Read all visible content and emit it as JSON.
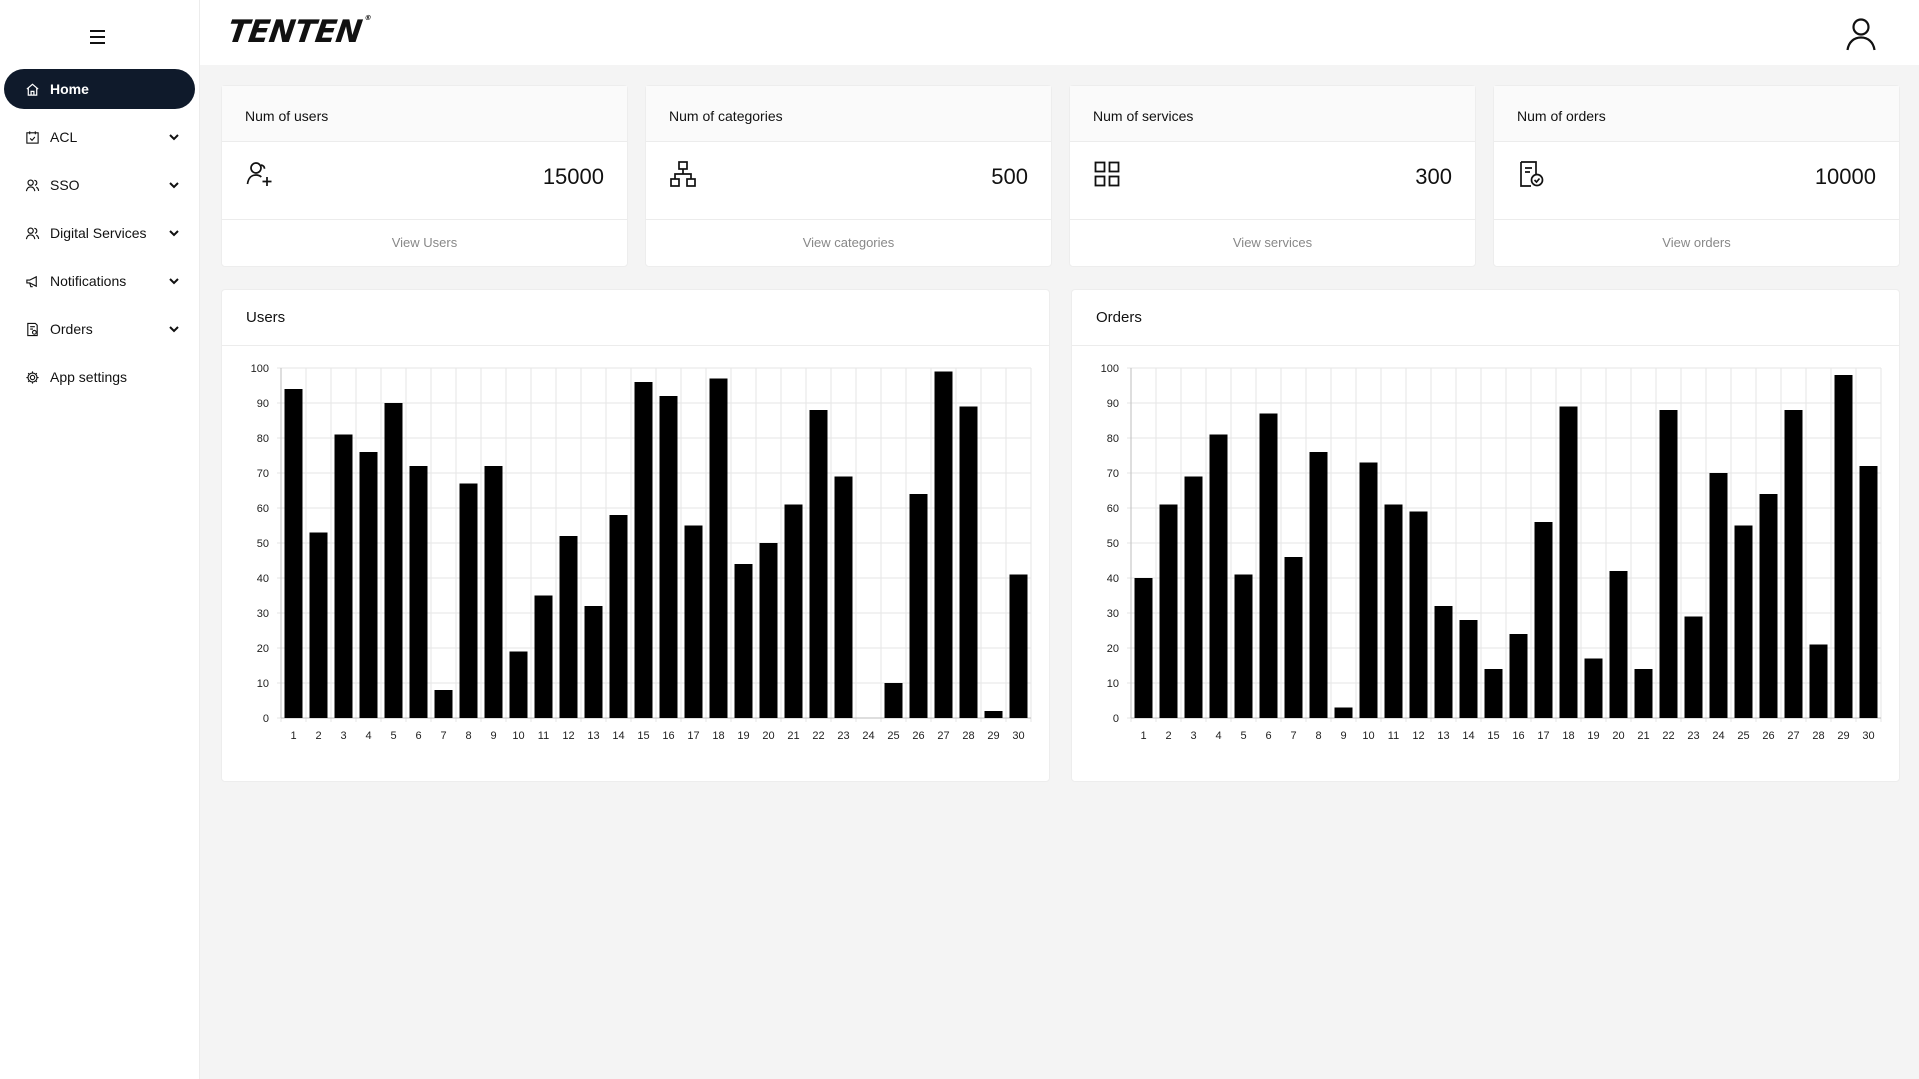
{
  "sidebar": {
    "items": [
      {
        "label": "Home",
        "icon": "home-icon",
        "active": true,
        "expandable": false
      },
      {
        "label": "ACL",
        "icon": "calendar-check-icon",
        "active": false,
        "expandable": true
      },
      {
        "label": "SSO",
        "icon": "users-icon",
        "active": false,
        "expandable": true
      },
      {
        "label": "Digital Services",
        "icon": "users-icon",
        "active": false,
        "expandable": true
      },
      {
        "label": "Notifications",
        "icon": "megaphone-icon",
        "active": false,
        "expandable": true
      },
      {
        "label": "Orders",
        "icon": "receipt-icon",
        "active": false,
        "expandable": true
      },
      {
        "label": "App settings",
        "icon": "gear-icon",
        "active": false,
        "expandable": false
      }
    ]
  },
  "header": {
    "logo": "TENTEN",
    "logo_mark": "®"
  },
  "stats": [
    {
      "title": "Num of users",
      "value": "15000",
      "link": "View Users",
      "icon": "user-add-icon"
    },
    {
      "title": "Num of categories",
      "value": "500",
      "link": "View categories",
      "icon": "hierarchy-icon"
    },
    {
      "title": "Num of services",
      "value": "300",
      "link": "View services",
      "icon": "grid-icon"
    },
    {
      "title": "Num of orders",
      "value": "10000",
      "link": "View orders",
      "icon": "order-check-icon"
    }
  ],
  "charts": {
    "users": {
      "title": "Users"
    },
    "orders": {
      "title": "Orders"
    }
  },
  "chart_data": [
    {
      "type": "bar",
      "title": "Users",
      "categories": [
        "1",
        "2",
        "3",
        "4",
        "5",
        "6",
        "7",
        "8",
        "9",
        "10",
        "11",
        "12",
        "13",
        "14",
        "15",
        "16",
        "17",
        "18",
        "19",
        "20",
        "21",
        "22",
        "23",
        "24",
        "25",
        "26",
        "27",
        "28",
        "29",
        "30"
      ],
      "values": [
        94,
        53,
        81,
        76,
        90,
        72,
        8,
        67,
        72,
        19,
        35,
        52,
        32,
        58,
        96,
        92,
        55,
        97,
        44,
        50,
        61,
        88,
        69,
        0,
        10,
        64,
        99,
        89,
        2,
        41
      ],
      "ylim": [
        0,
        100
      ],
      "yticks": [
        0,
        10,
        20,
        30,
        40,
        50,
        60,
        70,
        80,
        90,
        100
      ],
      "grid": true,
      "color": "#000000"
    },
    {
      "type": "bar",
      "title": "Orders",
      "categories": [
        "1",
        "2",
        "3",
        "4",
        "5",
        "6",
        "7",
        "8",
        "9",
        "10",
        "11",
        "12",
        "13",
        "14",
        "15",
        "16",
        "17",
        "18",
        "19",
        "20",
        "21",
        "22",
        "23",
        "24",
        "25",
        "26",
        "27",
        "28",
        "29",
        "30"
      ],
      "values": [
        40,
        61,
        69,
        81,
        41,
        87,
        46,
        76,
        3,
        73,
        61,
        59,
        32,
        28,
        14,
        24,
        56,
        89,
        17,
        42,
        14,
        88,
        29,
        70,
        55,
        64,
        88,
        21,
        98,
        72
      ],
      "ylim": [
        0,
        100
      ],
      "yticks": [
        0,
        10,
        20,
        30,
        40,
        50,
        60,
        70,
        80,
        90,
        100
      ],
      "grid": true,
      "color": "#000000"
    }
  ]
}
